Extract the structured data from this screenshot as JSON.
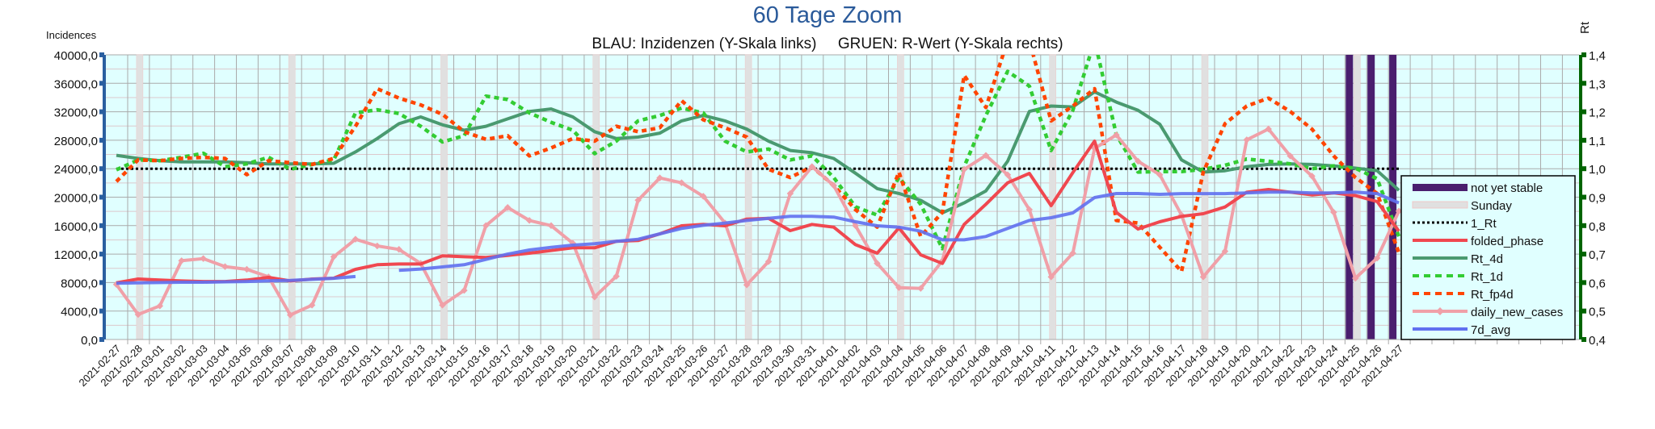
{
  "chart_data": {
    "type": "line",
    "title": "60 Tage Zoom",
    "subtitle": "BLAU: Inzidenzen (Y-Skala links)     GRUEN: R-Wert (Y-Skala rechts)",
    "ylabel_left": "Incidences",
    "ylabel_right": "Rt",
    "ylim_left": [
      0,
      40000
    ],
    "ylim_right": [
      0.4,
      1.4
    ],
    "yticks_left": [
      "0,0",
      "4000,0",
      "8000,0",
      "12000,0",
      "16000,0",
      "20000,0",
      "24000,0",
      "28000,0",
      "32000,0",
      "36000,0",
      "40000,0"
    ],
    "yticks_right": [
      "0,4",
      "0,5",
      "0,6",
      "0,7",
      "0,8",
      "0,9",
      "1,0",
      "1,1",
      "1,2",
      "1,3",
      "1,4"
    ],
    "grid": true,
    "legend_position": "bottom-right",
    "colors": {
      "plot_bg": "#e0ffff",
      "left_axis": "#2a5fa0",
      "right_axis": "#006400",
      "title": "#2a5a9a"
    },
    "categories": [
      "2021-02-27",
      "2021-02-28",
      "2021-03-01",
      "2021-03-02",
      "2021-03-03",
      "2021-03-04",
      "2021-03-05",
      "2021-03-06",
      "2021-03-07",
      "2021-03-08",
      "2021-03-09",
      "2021-03-10",
      "2021-03-11",
      "2021-03-12",
      "2021-03-13",
      "2021-03-14",
      "2021-03-15",
      "2021-03-16",
      "2021-03-17",
      "2021-03-18",
      "2021-03-19",
      "2021-03-20",
      "2021-03-21",
      "2021-03-22",
      "2021-03-23",
      "2021-03-24",
      "2021-03-25",
      "2021-03-26",
      "2021-03-27",
      "2021-03-28",
      "2021-03-29",
      "2021-03-30",
      "2021-03-31",
      "2021-04-01",
      "2021-04-02",
      "2021-04-03",
      "2021-04-04",
      "2021-04-05",
      "2021-04-06",
      "2021-04-07",
      "2021-04-08",
      "2021-04-09",
      "2021-04-10",
      "2021-04-11",
      "2021-04-12",
      "2021-04-13",
      "2021-04-14",
      "2021-04-15",
      "2021-04-16",
      "2021-04-17",
      "2021-04-18",
      "2021-04-19",
      "2021-04-20",
      "2021-04-21",
      "2021-04-22",
      "2021-04-23",
      "2021-04-24",
      "2021-04-25",
      "2021-04-26",
      "2021-04-27"
    ],
    "sunday_indices": [
      1,
      8,
      15,
      22,
      29,
      36,
      43,
      50,
      57
    ],
    "not_yet_stable_indices": [
      57,
      58,
      59
    ],
    "reference_line": {
      "name": "1_Rt",
      "value": 1.0,
      "axis": "right",
      "color": "#000000"
    },
    "series": [
      {
        "name": "folded_phase",
        "axis": "left",
        "color": "#f04850",
        "style": "solid",
        "values": [
          7970,
          8500,
          8350,
          8230,
          8150,
          8150,
          8350,
          8720,
          8230,
          8500,
          8610,
          9860,
          10500,
          10610,
          10610,
          11750,
          11630,
          11520,
          11820,
          12120,
          12500,
          12880,
          12880,
          13790,
          13900,
          14840,
          15980,
          16170,
          15980,
          16920,
          17030,
          15300,
          16170,
          15790,
          13330,
          12120,
          15680,
          11900,
          10690,
          16170,
          19000,
          22020,
          23340,
          18810,
          23460,
          27880,
          17870,
          15520,
          16540,
          17300,
          17680,
          18620,
          20700,
          21080,
          20700,
          20320,
          20600,
          20210,
          19380,
          15220
        ]
      },
      {
        "name": "Rt_4d",
        "axis": "right",
        "color": "#4a9a70",
        "style": "solid",
        "values": [
          1.047,
          1.036,
          1.028,
          1.024,
          1.024,
          1.024,
          1.021,
          1.017,
          1.017,
          1.017,
          1.019,
          1.059,
          1.106,
          1.158,
          1.182,
          1.154,
          1.135,
          1.149,
          1.175,
          1.201,
          1.21,
          1.182,
          1.13,
          1.106,
          1.111,
          1.125,
          1.168,
          1.187,
          1.168,
          1.139,
          1.097,
          1.064,
          1.056,
          1.036,
          0.984,
          0.93,
          0.913,
          0.889,
          0.845,
          0.88,
          0.922,
          1.026,
          1.201,
          1.22,
          1.217,
          1.27,
          1.234,
          1.205,
          1.156,
          1.031,
          0.988,
          0.993,
          1.007,
          1.015,
          1.017,
          1.015,
          1.01,
          1.002,
          0.993,
          0.924
        ]
      },
      {
        "name": "Rt_1d",
        "axis": "right",
        "color": "#33cc33",
        "style": "dashed",
        "values": [
          0.996,
          1.031,
          1.028,
          1.04,
          1.054,
          1.007,
          1.017,
          1.04,
          0.998,
          1.015,
          1.031,
          1.196,
          1.207,
          1.194,
          1.149,
          1.094,
          1.116,
          1.255,
          1.243,
          1.196,
          1.163,
          1.135,
          1.053,
          1.097,
          1.168,
          1.187,
          1.213,
          1.196,
          1.097,
          1.059,
          1.069,
          1.031,
          1.045,
          0.969,
          0.866,
          0.837,
          0.969,
          0.875,
          0.719,
          1.007,
          1.187,
          1.342,
          1.29,
          1.064,
          1.205,
          1.45,
          1.12,
          0.988,
          0.99,
          0.99,
          0.998,
          1.012,
          1.034,
          1.026,
          1.017,
          1.0,
          1.01,
          1.002,
          0.965,
          0.762
        ]
      },
      {
        "name": "Rt_fp4d",
        "axis": "right",
        "color": "#ff4500",
        "style": "dashed",
        "values": [
          0.955,
          1.031,
          1.028,
          1.036,
          1.04,
          1.036,
          0.979,
          1.028,
          1.021,
          1.015,
          1.036,
          1.149,
          1.281,
          1.248,
          1.224,
          1.191,
          1.13,
          1.103,
          1.116,
          1.045,
          1.073,
          1.106,
          1.097,
          1.149,
          1.13,
          1.144,
          1.239,
          1.172,
          1.144,
          1.111,
          0.998,
          0.969,
          1.007,
          0.941,
          0.856,
          0.795,
          0.988,
          0.762,
          0.847,
          1.328,
          1.215,
          1.45,
          1.45,
          1.168,
          1.22,
          1.281,
          0.818,
          0.809,
          0.724,
          0.639,
          0.988,
          1.158,
          1.22,
          1.248,
          1.201,
          1.139,
          1.045,
          0.969,
          0.913,
          0.705
        ]
      },
      {
        "name": "daily_new_cases",
        "axis": "left",
        "color": "#f0a0a8",
        "style": "solid",
        "values": [
          7740,
          3510,
          4720,
          11070,
          11370,
          10240,
          9860,
          8800,
          3440,
          4830,
          11630,
          14090,
          13140,
          12660,
          10690,
          4830,
          6900,
          16000,
          18550,
          16730,
          16000,
          13520,
          5970,
          8880,
          19570,
          22700,
          22020,
          20130,
          16360,
          7670,
          10950,
          20510,
          24290,
          21640,
          16000,
          10690,
          7290,
          7180,
          11070,
          23910,
          25870,
          23150,
          18240,
          8800,
          12120,
          26860,
          28740,
          25040,
          23150,
          17490,
          8800,
          12390,
          28060,
          29570,
          25790,
          22960,
          17870,
          8610,
          11450,
          18050
        ]
      },
      {
        "name": "7d_avg",
        "axis": "left",
        "color": "#6070f0",
        "style": "solid",
        "values": [
          7900,
          7950,
          8000,
          8050,
          8050,
          8100,
          8150,
          8250,
          8300,
          8450,
          8600,
          8850,
          null,
          9710,
          9900,
          10200,
          10500,
          11250,
          12000,
          12580,
          12950,
          13260,
          13450,
          13790,
          14090,
          14840,
          15600,
          16050,
          16360,
          16730,
          17030,
          17300,
          17300,
          17200,
          16540,
          15980,
          15790,
          15220,
          14010,
          14010,
          14470,
          15600,
          16730,
          17110,
          17790,
          19940,
          20510,
          20510,
          20400,
          20500,
          20500,
          20500,
          20600,
          20700,
          20700,
          20600,
          20600,
          20700,
          20500,
          19190
        ]
      }
    ],
    "legend": [
      {
        "label": "not yet stable",
        "color": "#4a1e6e",
        "kind": "bar"
      },
      {
        "label": "Sunday",
        "color": "#e0e0e0",
        "kind": "band"
      },
      {
        "label": "1_Rt",
        "color": "#000000",
        "kind": "dotted"
      },
      {
        "label": "folded_phase",
        "color": "#f04850",
        "kind": "solid"
      },
      {
        "label": "Rt_4d",
        "color": "#4a9a70",
        "kind": "solid"
      },
      {
        "label": "Rt_1d",
        "color": "#33cc33",
        "kind": "dashed"
      },
      {
        "label": "Rt_fp4d",
        "color": "#ff4500",
        "kind": "dashed"
      },
      {
        "label": "daily_new_cases",
        "color": "#f0a0a8",
        "kind": "marker"
      },
      {
        "label": "7d_avg",
        "color": "#6070f0",
        "kind": "solid"
      }
    ]
  }
}
